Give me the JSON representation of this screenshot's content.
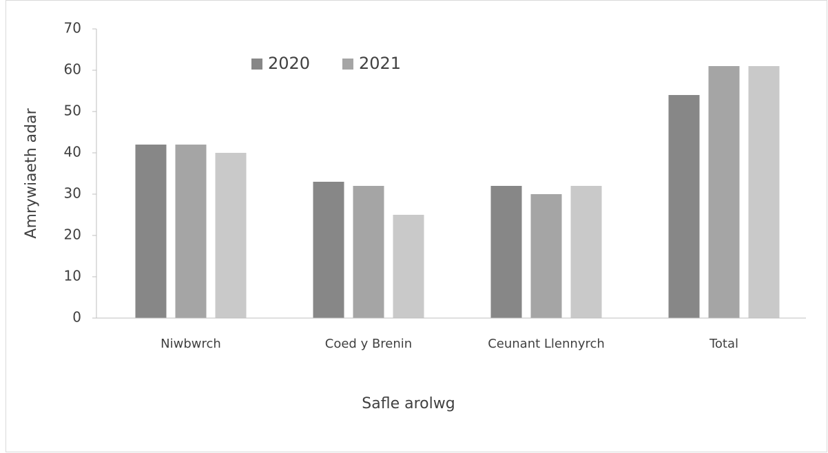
{
  "chart_data": {
    "type": "bar",
    "categories": [
      "Niwbwrch",
      "Coed y Brenin",
      "Ceunant Llennyrch",
      "Total"
    ],
    "series": [
      {
        "name": "2020",
        "color": "#878787",
        "values": [
          42,
          33,
          32,
          54
        ]
      },
      {
        "name": "2021",
        "color": "#a5a5a5",
        "values": [
          42,
          32,
          30,
          61
        ]
      },
      {
        "color": "#c9c9c9",
        "values": [
          40,
          25,
          32,
          61
        ]
      }
    ],
    "xlabel": "Safle arolwg",
    "ylabel": "Amrywiaeth adar",
    "ylim": [
      0,
      70
    ],
    "yticks": [
      0,
      10,
      20,
      30,
      40,
      50,
      60,
      70
    ],
    "grid": false,
    "legend": "top"
  }
}
